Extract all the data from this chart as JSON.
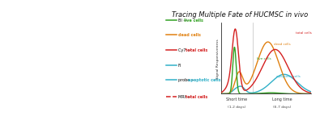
{
  "title": "Tracing Multiple Fate of HUCMSC in vivo",
  "title_fontsize": 6.0,
  "bg_color": "#ffffff",
  "curve_colors": {
    "total": "#d42020",
    "dead": "#e08010",
    "live": "#30a020",
    "apoptotic": "#30b0c8"
  },
  "legend": [
    {
      "prefix": "BI",
      "dash": "—",
      "label": "live cells",
      "color": "#30a020",
      "linestyle": "-"
    },
    {
      "prefix": "",
      "dash": "",
      "label": "dead cells",
      "color": "#e08010",
      "linestyle": "-"
    },
    {
      "prefix": "Cy7",
      "dash": "—",
      "label": "total cells",
      "color": "#d42020",
      "linestyle": "-"
    },
    {
      "prefix": "FI",
      "dash": "",
      "label": "",
      "color": "#30b0c8",
      "linestyle": "-"
    },
    {
      "prefix": "probe",
      "dash": "—",
      "label": "apoptotic cells",
      "color": "#30b0c8",
      "linestyle": "-"
    },
    {
      "prefix": "MRI",
      "dash": "—",
      "label": "total cells",
      "color": "#d42020",
      "linestyle": "--"
    }
  ],
  "xlabel_short": "Short time",
  "xlabel_short_sub": "(1-2 days)",
  "xlabel_long": "Long time",
  "xlabel_long_sub": "(6-7 days)",
  "ylabel": "Signal Responsiveness",
  "annotation_total": "total cells",
  "annotation_dead": "dead cells",
  "annotation_live": "live cells",
  "annotation_apoptotic": "apoptotic cells"
}
